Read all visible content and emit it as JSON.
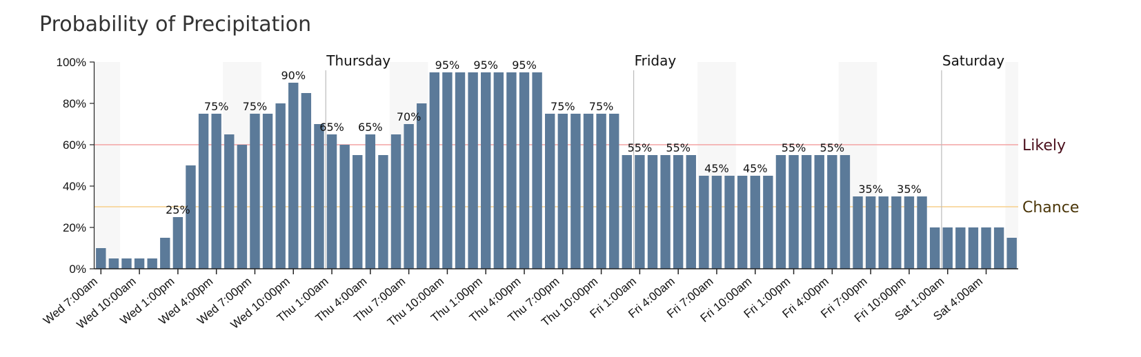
{
  "chart_data": {
    "type": "bar",
    "title": "Probability of Precipitation",
    "xlabel": "",
    "ylabel": "",
    "ylim": [
      0,
      100
    ],
    "yticks": [
      "0%",
      "20%",
      "40%",
      "60%",
      "80%",
      "100%"
    ],
    "bar_color": "#5b7a99",
    "values": [
      10,
      5,
      5,
      5,
      5,
      15,
      25,
      50,
      75,
      75,
      65,
      60,
      75,
      75,
      80,
      90,
      85,
      70,
      65,
      60,
      55,
      65,
      55,
      65,
      70,
      80,
      95,
      95,
      95,
      95,
      95,
      95,
      95,
      95,
      95,
      75,
      75,
      75,
      75,
      75,
      75,
      55,
      55,
      55,
      55,
      55,
      55,
      45,
      45,
      45,
      45,
      45,
      45,
      55,
      55,
      55,
      55,
      55,
      55,
      35,
      35,
      35,
      35,
      35,
      35,
      20,
      20,
      20,
      20,
      20,
      20,
      15
    ],
    "bar_labels": [
      {
        "index": 6,
        "text": "25%"
      },
      {
        "index": 9,
        "text": "75%"
      },
      {
        "index": 12,
        "text": "75%"
      },
      {
        "index": 15,
        "text": "90%"
      },
      {
        "index": 18,
        "text": "65%"
      },
      {
        "index": 21,
        "text": "65%"
      },
      {
        "index": 24,
        "text": "70%"
      },
      {
        "index": 27,
        "text": "95%"
      },
      {
        "index": 30,
        "text": "95%"
      },
      {
        "index": 33,
        "text": "95%"
      },
      {
        "index": 36,
        "text": "75%"
      },
      {
        "index": 39,
        "text": "75%"
      },
      {
        "index": 42,
        "text": "55%"
      },
      {
        "index": 45,
        "text": "55%"
      },
      {
        "index": 48,
        "text": "45%"
      },
      {
        "index": 51,
        "text": "45%"
      },
      {
        "index": 54,
        "text": "55%"
      },
      {
        "index": 57,
        "text": "55%"
      },
      {
        "index": 60,
        "text": "35%"
      },
      {
        "index": 63,
        "text": "35%"
      }
    ],
    "x_tick_labels": [
      {
        "index": 0,
        "text": "Wed 7:00am"
      },
      {
        "index": 3,
        "text": "Wed 10:00am"
      },
      {
        "index": 6,
        "text": "Wed 1:00pm"
      },
      {
        "index": 9,
        "text": "Wed 4:00pm"
      },
      {
        "index": 12,
        "text": "Wed 7:00pm"
      },
      {
        "index": 15,
        "text": "Wed 10:00pm"
      },
      {
        "index": 18,
        "text": "Thu 1:00am"
      },
      {
        "index": 21,
        "text": "Thu 4:00am"
      },
      {
        "index": 24,
        "text": "Thu 7:00am"
      },
      {
        "index": 27,
        "text": "Thu 10:00am"
      },
      {
        "index": 30,
        "text": "Thu 1:00pm"
      },
      {
        "index": 33,
        "text": "Thu 4:00pm"
      },
      {
        "index": 36,
        "text": "Thu 7:00pm"
      },
      {
        "index": 39,
        "text": "Thu 10:00pm"
      },
      {
        "index": 42,
        "text": "Fri 1:00am"
      },
      {
        "index": 45,
        "text": "Fri 4:00am"
      },
      {
        "index": 48,
        "text": "Fri 7:00am"
      },
      {
        "index": 51,
        "text": "Fri 10:00am"
      },
      {
        "index": 54,
        "text": "Fri 1:00pm"
      },
      {
        "index": 57,
        "text": "Fri 4:00pm"
      },
      {
        "index": 60,
        "text": "Fri 7:00pm"
      },
      {
        "index": 63,
        "text": "Fri 10:00pm"
      },
      {
        "index": 66,
        "text": "Sat 1:00am"
      },
      {
        "index": 69,
        "text": "Sat 4:00am"
      }
    ],
    "day_markers": [
      {
        "index": 17,
        "text": "Thursday"
      },
      {
        "index": 41,
        "text": "Friday"
      },
      {
        "index": 65,
        "text": "Saturday"
      }
    ],
    "night_shading": [
      {
        "start": 0,
        "end": 2
      },
      {
        "start": 10,
        "end": 13
      },
      {
        "start": 23,
        "end": 26
      },
      {
        "start": 47,
        "end": 50
      },
      {
        "start": 58,
        "end": 61
      },
      {
        "start": 71,
        "end": 72
      }
    ],
    "reference_lines": [
      {
        "value": 60,
        "label": "Likely",
        "line_color": "#f4a3a3",
        "text_color": "#4a0f1c"
      },
      {
        "value": 30,
        "label": "Chance",
        "line_color": "#f7cf8a",
        "text_color": "#4a3508"
      }
    ]
  }
}
